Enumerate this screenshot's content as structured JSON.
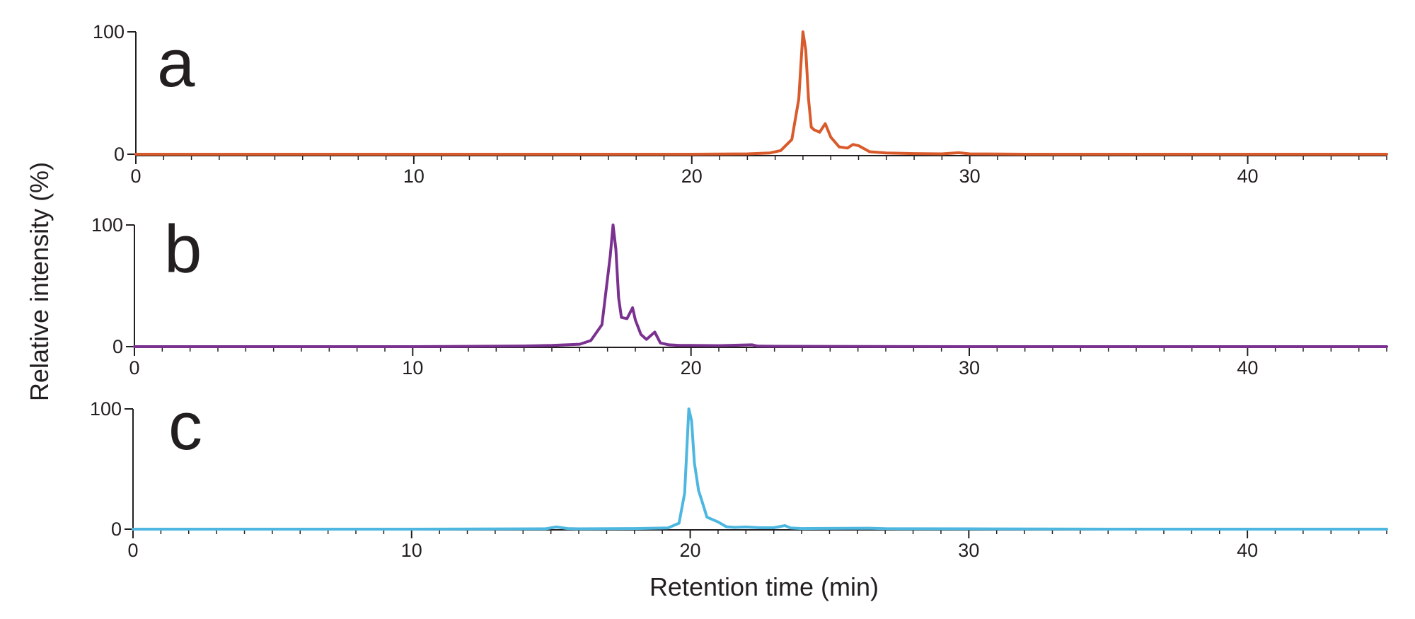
{
  "chart_data": [
    {
      "type": "line",
      "panel_label": "a",
      "color": "#d95a2b",
      "xlim": [
        0,
        45
      ],
      "ylim": [
        0,
        100
      ],
      "x_ticks": [
        "0",
        "10",
        "20",
        "30",
        "40"
      ],
      "y_ticks": [
        "0",
        "100"
      ],
      "series": [
        {
          "x": [
            0,
            5,
            10,
            15,
            20,
            22,
            22.8,
            23.2,
            23.6,
            23.85,
            24.0,
            24.1,
            24.2,
            24.3,
            24.4,
            24.6,
            24.8,
            25.0,
            25.3,
            25.6,
            25.8,
            26.0,
            26.4,
            27.0,
            28.0,
            29.0,
            29.6,
            30.0,
            32,
            35,
            40,
            45
          ],
          "y": [
            0,
            0,
            0,
            0,
            0,
            0.3,
            1,
            3,
            12,
            45,
            100,
            85,
            45,
            22,
            20,
            18,
            25,
            14,
            6,
            5,
            8,
            7,
            2,
            1,
            0.5,
            0.3,
            1.2,
            0.3,
            0,
            0,
            0,
            0
          ]
        }
      ]
    },
    {
      "type": "line",
      "panel_label": "b",
      "color": "#7a3190",
      "xlim": [
        0,
        45
      ],
      "ylim": [
        0,
        100
      ],
      "x_ticks": [
        "0",
        "10",
        "20",
        "30",
        "40"
      ],
      "y_ticks": [
        "0",
        "100"
      ],
      "series": [
        {
          "x": [
            0,
            5,
            10,
            14,
            15,
            16,
            16.4,
            16.8,
            17.1,
            17.2,
            17.3,
            17.4,
            17.5,
            17.7,
            17.9,
            18.0,
            18.2,
            18.4,
            18.7,
            18.9,
            19.2,
            19.6,
            20.0,
            21.0,
            22.2,
            22.4,
            23.0,
            30,
            35,
            40,
            45
          ],
          "y": [
            0,
            0,
            0,
            0.5,
            1,
            2,
            5,
            18,
            75,
            100,
            80,
            40,
            24,
            23,
            32,
            22,
            10,
            6,
            12,
            3,
            1.5,
            1,
            1,
            0.8,
            1.5,
            0.4,
            0.3,
            0,
            0,
            0,
            0
          ]
        }
      ]
    },
    {
      "type": "line",
      "panel_label": "c",
      "color": "#4eb7e0",
      "xlim": [
        0,
        45
      ],
      "ylim": [
        0,
        100
      ],
      "x_ticks": [
        "0",
        "10",
        "20",
        "30",
        "40"
      ],
      "y_ticks": [
        "0",
        "100"
      ],
      "series": [
        {
          "x": [
            0,
            5,
            10,
            14.8,
            15.2,
            15.6,
            16,
            18,
            19.2,
            19.6,
            19.8,
            19.95,
            20.05,
            20.15,
            20.3,
            20.4,
            20.6,
            20.8,
            21.0,
            21.3,
            21.6,
            22.0,
            22.5,
            23.0,
            23.4,
            23.6,
            24.0,
            26.4,
            27,
            30,
            35,
            40,
            45
          ],
          "y": [
            0,
            0,
            0,
            0.3,
            1.8,
            0.5,
            0.3,
            0.5,
            1,
            5,
            30,
            100,
            90,
            55,
            32,
            25,
            10,
            8,
            6,
            2,
            1.5,
            1.8,
            1.2,
            1.2,
            3,
            1,
            0.5,
            0.8,
            0.4,
            0.3,
            0,
            0,
            0
          ]
        }
      ]
    }
  ],
  "axes": {
    "ylabel": "Relative intensity (%)",
    "xlabel": "Retention time (min)"
  }
}
